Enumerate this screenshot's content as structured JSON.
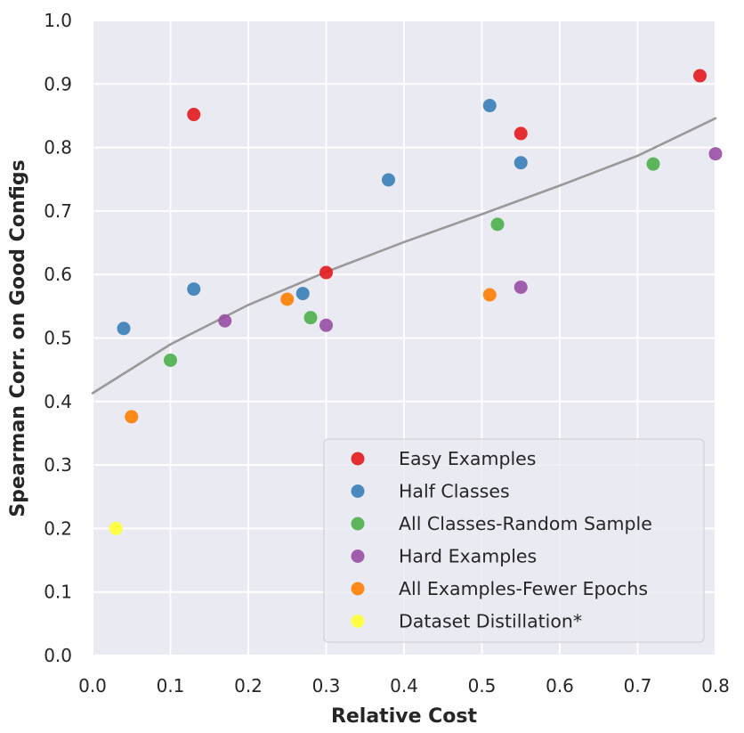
{
  "chart_data": {
    "type": "scatter",
    "xlabel": "Relative Cost",
    "ylabel": "Spearman Corr. on Good Configs",
    "xlim": [
      0.0,
      0.8
    ],
    "ylim": [
      0.0,
      1.0
    ],
    "xticks": [
      "0.0",
      "0.1",
      "0.2",
      "0.3",
      "0.4",
      "0.5",
      "0.6",
      "0.7",
      "0.8"
    ],
    "yticks": [
      "0.0",
      "0.1",
      "0.2",
      "0.3",
      "0.4",
      "0.5",
      "0.6",
      "0.7",
      "0.8",
      "0.9",
      "1.0"
    ],
    "grid": true,
    "legend_position": "lower-right",
    "series": [
      {
        "name": "Easy Examples",
        "color": "#e41a1c",
        "points": [
          [
            0.13,
            0.852
          ],
          [
            0.3,
            0.603
          ],
          [
            0.55,
            0.822
          ],
          [
            0.78,
            0.913
          ]
        ]
      },
      {
        "name": "Half Classes",
        "color": "#377eb8",
        "points": [
          [
            0.04,
            0.515
          ],
          [
            0.13,
            0.577
          ],
          [
            0.27,
            0.57
          ],
          [
            0.38,
            0.749
          ],
          [
            0.51,
            0.866
          ],
          [
            0.55,
            0.776
          ]
        ]
      },
      {
        "name": "All Classes-Random Sample",
        "color": "#4daf4a",
        "points": [
          [
            0.1,
            0.465
          ],
          [
            0.28,
            0.532
          ],
          [
            0.52,
            0.679
          ],
          [
            0.72,
            0.774
          ]
        ]
      },
      {
        "name": "Hard Examples",
        "color": "#984ea3",
        "points": [
          [
            0.17,
            0.527
          ],
          [
            0.3,
            0.52
          ],
          [
            0.55,
            0.58
          ],
          [
            0.8,
            0.79
          ]
        ]
      },
      {
        "name": "All Examples-Fewer Epochs",
        "color": "#ff7f00",
        "points": [
          [
            0.05,
            0.376
          ],
          [
            0.25,
            0.561
          ],
          [
            0.51,
            0.568
          ]
        ]
      },
      {
        "name": "Dataset Distillation*",
        "color": "#ffff33",
        "points": [
          [
            0.03,
            0.2
          ]
        ]
      }
    ],
    "trend_line": {
      "color": "#999999",
      "points": [
        [
          0.0,
          0.413
        ],
        [
          0.1,
          0.49
        ],
        [
          0.2,
          0.552
        ],
        [
          0.3,
          0.604
        ],
        [
          0.4,
          0.651
        ],
        [
          0.5,
          0.695
        ],
        [
          0.6,
          0.74
        ],
        [
          0.7,
          0.787
        ],
        [
          0.8,
          0.846
        ]
      ]
    }
  }
}
